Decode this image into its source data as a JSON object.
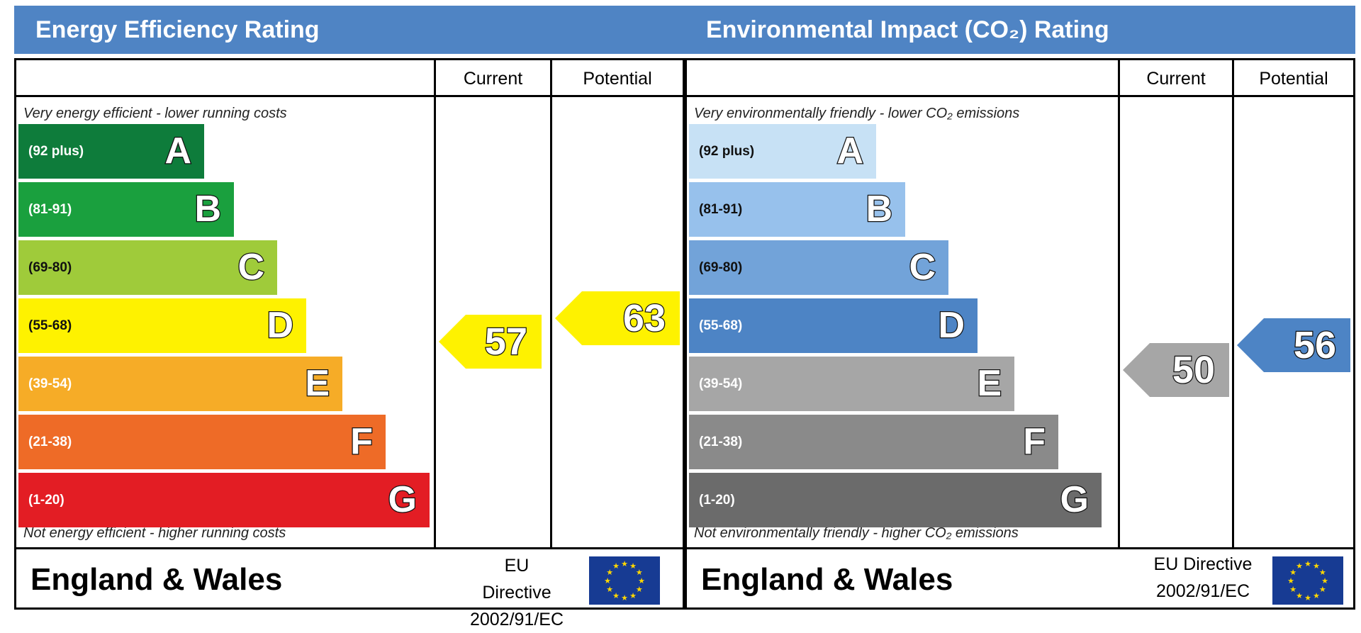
{
  "chart_data": [
    {
      "type": "bar",
      "title": "Energy Efficiency Rating",
      "columns": [
        "Current",
        "Potential"
      ],
      "top_note": "Very energy efficient - lower running costs",
      "bottom_note": "Not energy efficient - higher running costs",
      "bands": [
        {
          "letter": "A",
          "range": "(92 plus)",
          "color": "#0e7c3b"
        },
        {
          "letter": "B",
          "range": "(81-91)",
          "color": "#1aa03e"
        },
        {
          "letter": "C",
          "range": "(69-80)",
          "color": "#9fcb3a"
        },
        {
          "letter": "D",
          "range": "(55-68)",
          "color": "#fef200"
        },
        {
          "letter": "E",
          "range": "(39-54)",
          "color": "#f6ac27"
        },
        {
          "letter": "F",
          "range": "(21-38)",
          "color": "#ee6b27"
        },
        {
          "letter": "G",
          "range": "(1-20)",
          "color": "#e31d24"
        }
      ],
      "current": {
        "value": 57,
        "band": "D",
        "color": "#fef200"
      },
      "potential": {
        "value": 63,
        "band": "D",
        "color": "#fef200"
      },
      "footer": "England & Wales",
      "directive_line1": "EU Directive",
      "directive_line2": "2002/91/EC"
    },
    {
      "type": "bar",
      "title": "Environmental Impact (CO₂) Rating",
      "columns": [
        "Current",
        "Potential"
      ],
      "top_note": "Very environmentally friendly - lower CO₂ emissions",
      "bottom_note": "Not environmentally friendly - higher CO₂ emissions",
      "bands": [
        {
          "letter": "A",
          "range": "(92 plus)",
          "color": "#c7e1f5"
        },
        {
          "letter": "B",
          "range": "(81-91)",
          "color": "#97c1ec"
        },
        {
          "letter": "C",
          "range": "(69-80)",
          "color": "#72a3d9"
        },
        {
          "letter": "D",
          "range": "(55-68)",
          "color": "#4d84c5"
        },
        {
          "letter": "E",
          "range": "(39-54)",
          "color": "#a6a6a6"
        },
        {
          "letter": "F",
          "range": "(21-38)",
          "color": "#8a8a8a"
        },
        {
          "letter": "G",
          "range": "(1-20)",
          "color": "#6b6b6b"
        }
      ],
      "current": {
        "value": 50,
        "band": "E",
        "color": "#a6a6a6"
      },
      "potential": {
        "value": 56,
        "band": "D",
        "color": "#4d84c5"
      },
      "footer": "England & Wales",
      "directive_line1": "EU Directive",
      "directive_line2": "2002/91/EC"
    }
  ]
}
